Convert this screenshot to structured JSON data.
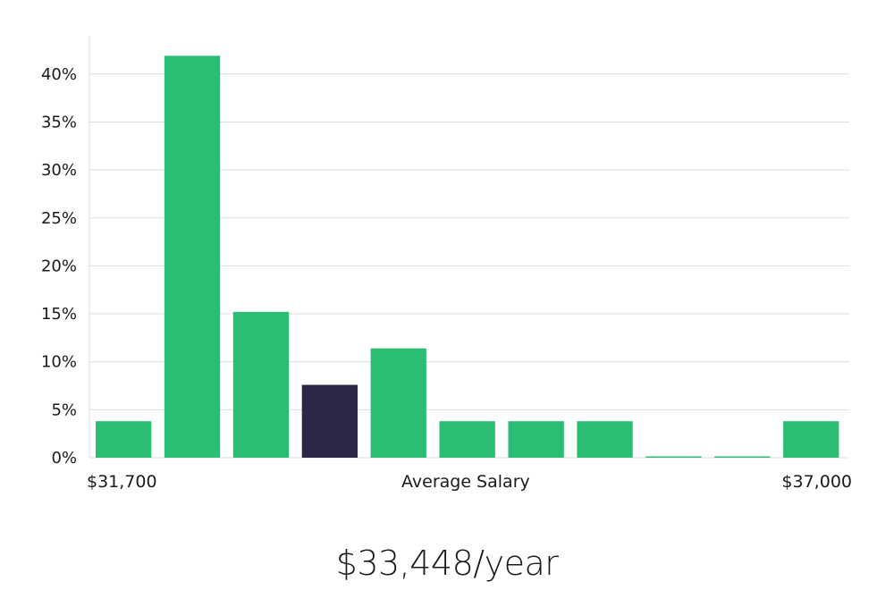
{
  "chart_data": {
    "type": "bar",
    "y_unit": "%",
    "ylim": [
      0,
      43
    ],
    "yticks": [
      0,
      5,
      10,
      15,
      20,
      25,
      30,
      35,
      40
    ],
    "ytick_labels": [
      "0%",
      "5%",
      "10%",
      "15%",
      "20%",
      "25%",
      "30%",
      "35%",
      "40%"
    ],
    "values": [
      3.8,
      41.9,
      15.2,
      7.6,
      11.4,
      3.8,
      3.8,
      3.8,
      0.1,
      0.1,
      3.8
    ],
    "highlight_index": 3,
    "x_min_label": "$31,700",
    "x_mid_label": "Average Salary",
    "x_max_label": "$37,000",
    "grid": true,
    "colors": {
      "bar": "#2bbd74",
      "highlight": "#2a2747",
      "grid": "#dedede",
      "axis": "#cfcfcf"
    }
  },
  "summary": {
    "salary_text": "$33,448/year"
  }
}
